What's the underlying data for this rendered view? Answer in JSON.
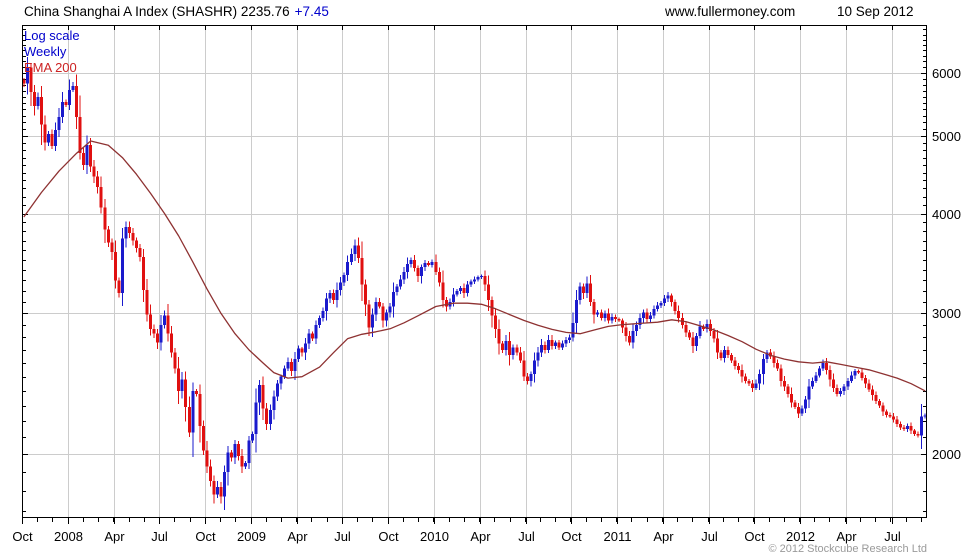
{
  "header": {
    "title_main": "China Shanghai A Index (SHASHR) 2235.76",
    "change": "+7.45",
    "site": "www.fullermoney.com",
    "date": "10 Sep 2012"
  },
  "legend": {
    "scale_label": "Log scale",
    "period_label": "Weekly",
    "ema_label": "EMA 200"
  },
  "footer": {
    "copyright": "© 2012 Stockcube Research Ltd"
  },
  "colors": {
    "up_candle": "#1a1acc",
    "down_candle": "#e01010",
    "ema_line": "#8e3232",
    "grid": "#cccccc",
    "axis": "#000000",
    "label_text": "#000000",
    "accent_blue": "#0000cc",
    "copyright_gray": "#9a9a9a"
  },
  "chart_data": {
    "type": "candlestick",
    "title": "China Shanghai A Index (SHASHR)",
    "last_price": 2235.76,
    "change": 7.45,
    "scale": "log",
    "period": "weekly",
    "overlay": "EMA 200",
    "grid": true,
    "legend_position": "top-left",
    "span": "Oct 2007 - 10 Sep 2012",
    "ylim": [
      1664,
      6886
    ],
    "yticks": [
      2000,
      3000,
      4000,
      5000,
      6000
    ],
    "y_minor_step": 100,
    "xtick_labels": [
      "Oct",
      "2008",
      "Apr",
      "Jul",
      "Oct",
      "2009",
      "Apr",
      "Jul",
      "Oct",
      "2010",
      "Apr",
      "Jul",
      "Oct",
      "2011",
      "Apr",
      "Jul",
      "Oct",
      "2012",
      "Apr",
      "Jul"
    ],
    "xtick_indices": [
      0,
      13,
      26,
      39,
      52,
      65,
      78,
      91,
      104,
      117,
      130,
      143,
      156,
      169,
      182,
      195,
      208,
      221,
      234,
      247
    ],
    "months_in_span": 59.4,
    "weekly_closes": [
      5820,
      6090,
      5680,
      5450,
      5600,
      5170,
      4910,
      5030,
      4860,
      5090,
      5280,
      5520,
      5470,
      5710,
      5780,
      5280,
      4760,
      4600,
      4870,
      4580,
      4450,
      4320,
      4070,
      3820,
      3680,
      3580,
      3300,
      3180,
      3720,
      3850,
      3780,
      3700,
      3620,
      3530,
      3210,
      2990,
      2870,
      2830,
      2760,
      2900,
      2980,
      2830,
      2680,
      2560,
      2400,
      2480,
      2290,
      2130,
      2400,
      2380,
      2170,
      2020,
      1930,
      1850,
      1780,
      1820,
      1770,
      1900,
      2010,
      1980,
      2060,
      1990,
      1930,
      1950,
      2080,
      2120,
      2320,
      2440,
      2280,
      2180,
      2270,
      2360,
      2450,
      2500,
      2560,
      2610,
      2540,
      2630,
      2710,
      2680,
      2750,
      2830,
      2790,
      2900,
      2960,
      3020,
      3130,
      3180,
      3120,
      3210,
      3280,
      3350,
      3480,
      3560,
      3650,
      3520,
      3260,
      3080,
      2880,
      2990,
      3100,
      3060,
      2940,
      3010,
      3060,
      3190,
      3240,
      3310,
      3380,
      3460,
      3500,
      3420,
      3340,
      3430,
      3470,
      3450,
      3480,
      3380,
      3280,
      3120,
      3060,
      3100,
      3170,
      3200,
      3230,
      3180,
      3260,
      3290,
      3310,
      3330,
      3340,
      3260,
      3120,
      2980,
      2870,
      2750,
      2700,
      2770,
      2660,
      2720,
      2680,
      2620,
      2500,
      2470,
      2520,
      2620,
      2680,
      2740,
      2700,
      2780,
      2730,
      2760,
      2720,
      2750,
      2780,
      2800,
      2920,
      3120,
      3240,
      3180,
      3270,
      3100,
      2990,
      3010,
      2960,
      3000,
      2940,
      2970,
      2950,
      2940,
      2880,
      2810,
      2760,
      2850,
      2900,
      2960,
      3010,
      2950,
      2980,
      3040,
      3070,
      3090,
      3130,
      3160,
      3100,
      3020,
      2960,
      2900,
      2840,
      2800,
      2730,
      2810,
      2890,
      2870,
      2910,
      2850,
      2790,
      2680,
      2640,
      2700,
      2660,
      2620,
      2580,
      2550,
      2500,
      2470,
      2450,
      2420,
      2450,
      2520,
      2630,
      2680,
      2650,
      2600,
      2560,
      2470,
      2430,
      2380,
      2320,
      2290,
      2250,
      2280,
      2340,
      2430,
      2470,
      2510,
      2560,
      2600,
      2550,
      2480,
      2420,
      2380,
      2400,
      2430,
      2470,
      2510,
      2540,
      2530,
      2490,
      2450,
      2410,
      2370,
      2330,
      2300,
      2260,
      2240,
      2230,
      2210,
      2180,
      2160,
      2150,
      2170,
      2140,
      2120,
      2110,
      2228,
      2236
    ],
    "ema200_anchors": [
      [
        0,
        3960
      ],
      [
        5,
        4250
      ],
      [
        10,
        4520
      ],
      [
        15,
        4760
      ],
      [
        19,
        4930
      ],
      [
        24,
        4870
      ],
      [
        28,
        4700
      ],
      [
        32,
        4480
      ],
      [
        36,
        4240
      ],
      [
        40,
        4000
      ],
      [
        44,
        3750
      ],
      [
        48,
        3480
      ],
      [
        52,
        3220
      ],
      [
        56,
        3000
      ],
      [
        60,
        2830
      ],
      [
        64,
        2700
      ],
      [
        68,
        2600
      ],
      [
        71,
        2530
      ],
      [
        75,
        2490
      ],
      [
        79,
        2500
      ],
      [
        84,
        2570
      ],
      [
        88,
        2680
      ],
      [
        92,
        2790
      ],
      [
        96,
        2825
      ],
      [
        100,
        2845
      ],
      [
        104,
        2870
      ],
      [
        108,
        2920
      ],
      [
        112,
        2980
      ],
      [
        117,
        3060
      ],
      [
        122,
        3090
      ],
      [
        126,
        3090
      ],
      [
        130,
        3080
      ],
      [
        134,
        3040
      ],
      [
        138,
        2990
      ],
      [
        142,
        2940
      ],
      [
        146,
        2900
      ],
      [
        150,
        2865
      ],
      [
        154,
        2840
      ],
      [
        158,
        2830
      ],
      [
        162,
        2860
      ],
      [
        166,
        2890
      ],
      [
        170,
        2905
      ],
      [
        175,
        2915
      ],
      [
        180,
        2925
      ],
      [
        184,
        2945
      ],
      [
        188,
        2930
      ],
      [
        192,
        2895
      ],
      [
        196,
        2860
      ],
      [
        200,
        2815
      ],
      [
        204,
        2765
      ],
      [
        208,
        2705
      ],
      [
        212,
        2660
      ],
      [
        216,
        2630
      ],
      [
        220,
        2610
      ],
      [
        224,
        2600
      ],
      [
        228,
        2610
      ],
      [
        232,
        2590
      ],
      [
        236,
        2570
      ],
      [
        240,
        2550
      ],
      [
        244,
        2520
      ],
      [
        248,
        2490
      ],
      [
        252,
        2450
      ],
      [
        256,
        2400
      ]
    ]
  }
}
